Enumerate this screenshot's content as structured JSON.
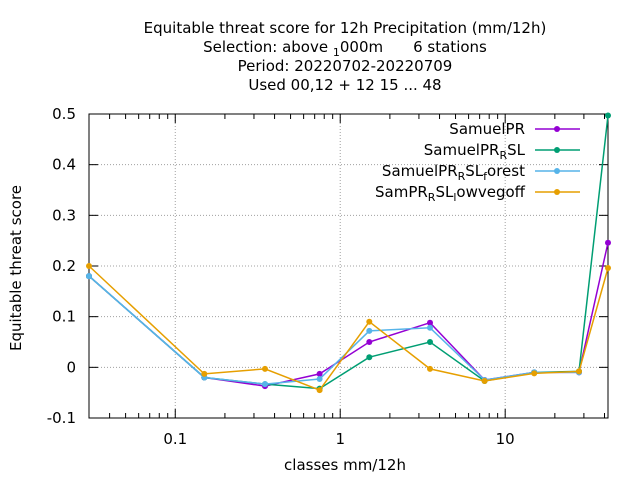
{
  "chart_data": {
    "type": "line",
    "title_lines": [
      "Equitable threat score  for 12h Precipitation (mm/12h)",
      "Selection: above",
      "Period: 20220702-20220709",
      "Used  00,12  + 12 15 ... 48"
    ],
    "title_selection": {
      "prefix": "Selection: above ",
      "sub": "1",
      "rest": "000m",
      "suffix": "6 stations"
    },
    "xlabel": "classes mm/12h",
    "ylabel": "Equitable threat score",
    "x_scale": "log",
    "xlim": [
      0.03,
      42
    ],
    "ylim": [
      -0.1,
      0.5
    ],
    "x_ticks": [
      {
        "value": 0.1,
        "label": "0.1"
      },
      {
        "value": 1,
        "label": "1"
      },
      {
        "value": 10,
        "label": "10"
      }
    ],
    "y_ticks": [
      {
        "value": 0.5,
        "label": "0.5"
      },
      {
        "value": 0.4,
        "label": "0.4"
      },
      {
        "value": 0.3,
        "label": "0.3"
      },
      {
        "value": 0.2,
        "label": "0.2"
      },
      {
        "value": 0.1,
        "label": "0.1"
      },
      {
        "value": 0,
        "label": "0"
      },
      {
        "value": -0.1,
        "label": "-0.1"
      }
    ],
    "grid": true,
    "legend_position": "top-right",
    "x": [
      0.03,
      0.15,
      0.35,
      0.75,
      1.5,
      3.5,
      7.5,
      15,
      28,
      42
    ],
    "series": [
      {
        "name": "SamuelPR",
        "legend": {
          "base": "SamuelPR",
          "sub": "",
          "rest": "",
          "sub2": "",
          "rest2": ""
        },
        "color": "#9400d3",
        "values": [
          0.18,
          -0.02,
          -0.037,
          -0.013,
          0.05,
          0.088,
          -0.025,
          -0.01,
          -0.01,
          0.246
        ]
      },
      {
        "name": "SamuelPR_RSL",
        "legend": {
          "base": "SamuelPR",
          "sub": "R",
          "rest": "SL",
          "sub2": "",
          "rest2": ""
        },
        "color": "#009e73",
        "values": [
          0.18,
          -0.02,
          -0.033,
          -0.042,
          0.02,
          0.05,
          -0.027,
          -0.01,
          -0.008,
          0.497
        ]
      },
      {
        "name": "SamuelPR_RSL_forest",
        "legend": {
          "base": "SamuelPR",
          "sub": "R",
          "rest": "SL",
          "sub2": "f",
          "rest2": "orest"
        },
        "color": "#56b4e9",
        "values": [
          0.18,
          -0.02,
          -0.033,
          -0.023,
          0.072,
          0.078,
          -0.025,
          -0.01,
          -0.01,
          null
        ]
      },
      {
        "name": "SamPR_RSL_lowvegoff",
        "legend": {
          "base": "SamPR",
          "sub": "R",
          "rest": "SL",
          "sub2": "l",
          "rest2": "owvegoff"
        },
        "color": "#e69f00",
        "values": [
          0.2,
          -0.013,
          -0.003,
          -0.045,
          0.09,
          -0.003,
          -0.027,
          -0.012,
          -0.008,
          0.196
        ]
      }
    ]
  }
}
